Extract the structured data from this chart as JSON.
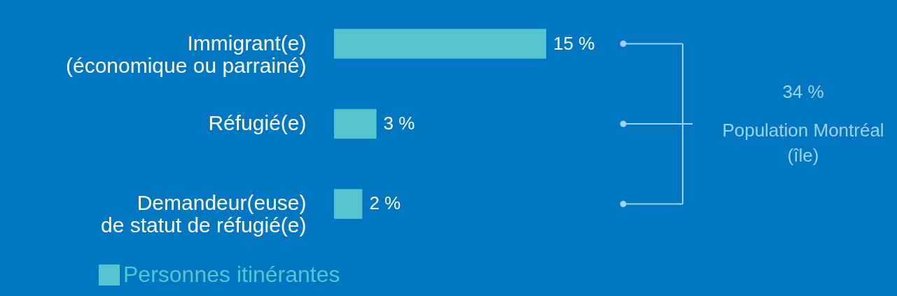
{
  "chart_data": {
    "type": "bar",
    "orientation": "horizontal",
    "categories": [
      "Immigrant(e)\n(économique ou parrainé)",
      "Réfugié(e)",
      "Demandeur(euse)\nde statut de réfugié(e)"
    ],
    "series": [
      {
        "name": "Personnes itinérantes",
        "color": "#56c5d0",
        "values": [
          15,
          3,
          2
        ],
        "value_labels": [
          "15 %",
          "3 %",
          "2 %"
        ]
      }
    ],
    "annotations": [
      "34 %",
      "Population Montréal\n(île)"
    ],
    "legend": "bottom left",
    "tick_labels": "y",
    "grid": false
  }
}
